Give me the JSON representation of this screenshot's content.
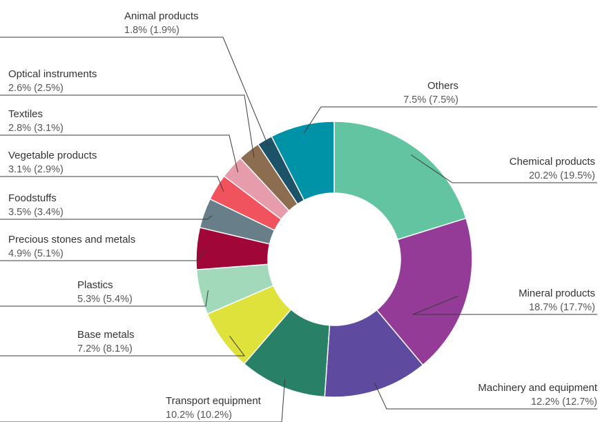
{
  "chart_data": {
    "type": "pie",
    "variant": "donut",
    "title": "",
    "slices": [
      {
        "name": "Chemical products",
        "value": 20.2,
        "label": "20.2% (19.5%)",
        "color": "#62C4A1"
      },
      {
        "name": "Mineral products",
        "value": 18.7,
        "label": "18.7% (17.7%)",
        "color": "#943B97"
      },
      {
        "name": "Machinery and equipment",
        "value": 12.2,
        "label": "12.2% (12.7%)",
        "color": "#5E4A9F"
      },
      {
        "name": "Transport equipment",
        "value": 10.2,
        "label": "10.2% (10.2%)",
        "color": "#288067"
      },
      {
        "name": "Base metals",
        "value": 7.2,
        "label": "7.2% (8.1%)",
        "color": "#DEE23A"
      },
      {
        "name": "Plastics",
        "value": 5.3,
        "label": "5.3% (5.4%)",
        "color": "#A2D9BA"
      },
      {
        "name": "Precious stones and metals",
        "value": 4.9,
        "label": "4.9% (5.1%)",
        "color": "#A10639"
      },
      {
        "name": "Foodstuffs",
        "value": 3.5,
        "label": "3.5% (3.4%)",
        "color": "#687F89"
      },
      {
        "name": "Vegetable products",
        "value": 3.1,
        "label": "3.1% (2.9%)",
        "color": "#F0535D"
      },
      {
        "name": "Textiles",
        "value": 2.8,
        "label": "2.8% (3.1%)",
        "color": "#E79CAC"
      },
      {
        "name": "Optical instruments",
        "value": 2.6,
        "label": "2.6% (2.5%)",
        "color": "#8D6D4F"
      },
      {
        "name": "Animal products",
        "value": 1.8,
        "label": "1.8% (1.9%)",
        "color": "#1D5368"
      },
      {
        "name": "Others",
        "value": 7.5,
        "label": "7.5% (7.5%)",
        "color": "#0093A8"
      }
    ],
    "start_angle": "12 o'clock",
    "direction": "clockwise",
    "legend": "none (direct labels with leader lines)"
  }
}
